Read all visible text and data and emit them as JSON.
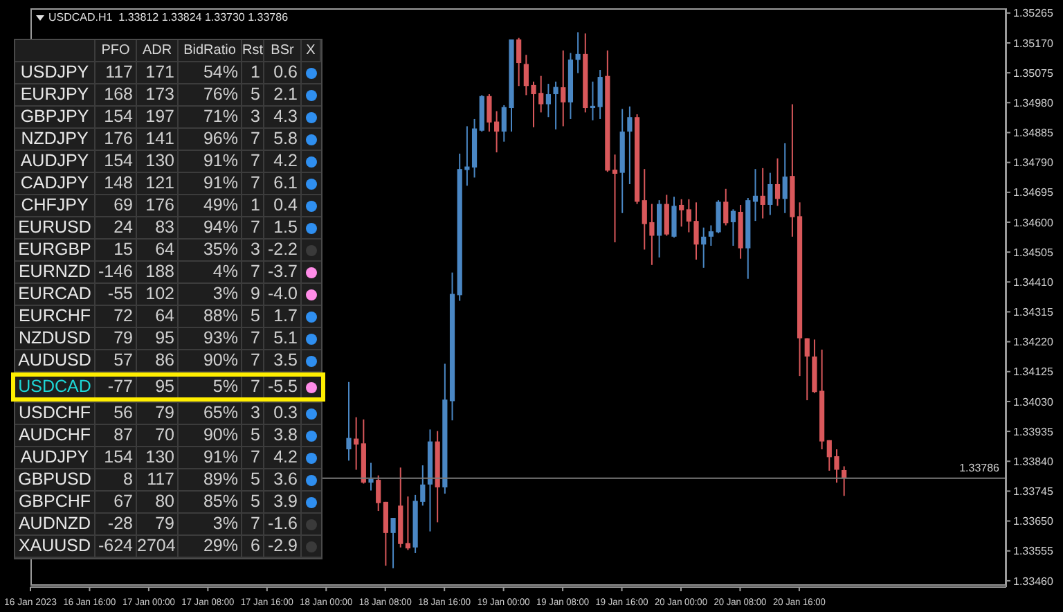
{
  "chart_data": [
    {
      "type": "candlestick",
      "title": "USDCAD.H1  1.33812 1.33824 1.33730 1.33786",
      "x": [
        "2023-01-18T03:00",
        "2023-01-18T04:00",
        "2023-01-18T05:00",
        "2023-01-18T06:00",
        "2023-01-18T07:00",
        "2023-01-18T08:00",
        "2023-01-18T09:00",
        "2023-01-18T10:00",
        "2023-01-18T11:00",
        "2023-01-18T12:00",
        "2023-01-18T13:00",
        "2023-01-18T14:00",
        "2023-01-18T15:00",
        "2023-01-18T16:00",
        "2023-01-18T17:00",
        "2023-01-18T18:00",
        "2023-01-18T19:00",
        "2023-01-18T20:00",
        "2023-01-18T21:00",
        "2023-01-18T22:00",
        "2023-01-18T23:00",
        "2023-01-19T00:00",
        "2023-01-19T01:00",
        "2023-01-19T02:00",
        "2023-01-19T03:00",
        "2023-01-19T04:00",
        "2023-01-19T05:00",
        "2023-01-19T06:00",
        "2023-01-19T07:00",
        "2023-01-19T08:00",
        "2023-01-19T09:00",
        "2023-01-19T10:00",
        "2023-01-19T11:00",
        "2023-01-19T12:00",
        "2023-01-19T13:00",
        "2023-01-19T14:00",
        "2023-01-19T15:00",
        "2023-01-19T16:00",
        "2023-01-19T17:00",
        "2023-01-19T18:00",
        "2023-01-19T19:00",
        "2023-01-19T20:00",
        "2023-01-19T21:00",
        "2023-01-19T22:00",
        "2023-01-19T23:00",
        "2023-01-20T00:00",
        "2023-01-20T01:00",
        "2023-01-20T02:00",
        "2023-01-20T03:00",
        "2023-01-20T04:00",
        "2023-01-20T05:00",
        "2023-01-20T06:00",
        "2023-01-20T07:00",
        "2023-01-20T08:00",
        "2023-01-20T09:00",
        "2023-01-20T10:00",
        "2023-01-20T11:00",
        "2023-01-20T12:00",
        "2023-01-20T13:00",
        "2023-01-20T14:00",
        "2023-01-20T15:00",
        "2023-01-20T16:00",
        "2023-01-20T17:00",
        "2023-01-20T18:00",
        "2023-01-20T19:00",
        "2023-01-20T20:00",
        "2023-01-20T21:00",
        "2023-01-20T22:00"
      ],
      "ohlc": [
        [
          1.33878,
          1.34092,
          1.33842,
          1.33914
        ],
        [
          1.33912,
          1.3398,
          1.33813,
          1.33893
        ],
        [
          1.33897,
          1.33973,
          1.33769,
          1.33772
        ],
        [
          1.33772,
          1.33835,
          1.33747,
          1.33784
        ],
        [
          1.33781,
          1.33795,
          1.33682,
          1.33707
        ],
        [
          1.33711,
          1.33711,
          1.33508,
          1.33612
        ],
        [
          1.33612,
          1.3366,
          1.335,
          1.3366
        ],
        [
          1.33699,
          1.3382,
          1.33566,
          1.33577
        ],
        [
          1.3358,
          1.33728,
          1.33558,
          1.33563
        ],
        [
          1.33566,
          1.33733,
          1.33548,
          1.33714
        ],
        [
          1.33711,
          1.33827,
          1.33699,
          1.33766
        ],
        [
          1.33766,
          1.33941,
          1.33617,
          1.33903
        ],
        [
          1.33903,
          1.33936,
          1.33646,
          1.33757
        ],
        [
          1.33757,
          1.3415,
          1.33737,
          1.34036
        ],
        [
          1.34031,
          1.3444,
          1.3397,
          1.34372
        ],
        [
          1.34368,
          1.34818,
          1.3435,
          1.34769
        ],
        [
          1.34766,
          1.34905,
          1.34716,
          1.34777
        ],
        [
          1.34774,
          1.34928,
          1.34742,
          1.34898
        ],
        [
          1.34891,
          1.35004,
          1.34888,
          1.35001
        ],
        [
          1.35001,
          1.35007,
          1.34888,
          1.34917
        ],
        [
          1.3492,
          1.34953,
          1.34822,
          1.34888
        ],
        [
          1.34888,
          1.34972,
          1.34856,
          1.34966
        ],
        [
          1.34963,
          1.35181,
          1.34888,
          1.35181
        ],
        [
          1.35181,
          1.35186,
          1.35033,
          1.35106
        ],
        [
          1.35103,
          1.35132,
          1.35004,
          1.35033
        ],
        [
          1.35036,
          1.35047,
          1.34902,
          1.35007
        ],
        [
          1.35011,
          1.35065,
          1.34949,
          1.34975
        ],
        [
          1.34975,
          1.3504,
          1.34934,
          1.35007
        ],
        [
          1.35007,
          1.35047,
          1.34895,
          1.3503
        ],
        [
          1.35029,
          1.35146,
          1.34905,
          1.34981
        ],
        [
          1.34981,
          1.35138,
          1.34928,
          1.35117
        ],
        [
          1.35116,
          1.35204,
          1.35074,
          1.35135
        ],
        [
          1.35135,
          1.352,
          1.34949,
          1.34963
        ],
        [
          1.34963,
          1.35047,
          1.34924,
          1.3497
        ],
        [
          1.34966,
          1.35084,
          1.34928,
          1.35062
        ],
        [
          1.35065,
          1.35146,
          1.3476,
          1.34764
        ],
        [
          1.34767,
          1.34815,
          1.34536,
          1.34754
        ],
        [
          1.34757,
          1.3496,
          1.34629,
          1.34888
        ],
        [
          1.34888,
          1.34968,
          1.34721,
          1.34934
        ],
        [
          1.34934,
          1.34943,
          1.34658,
          1.34665
        ],
        [
          1.3467,
          1.34769,
          1.34513,
          1.34594
        ],
        [
          1.346,
          1.34658,
          1.34464,
          1.34557
        ],
        [
          1.34557,
          1.3467,
          1.34488,
          1.34658
        ],
        [
          1.34658,
          1.34687,
          1.34557,
          1.34561
        ],
        [
          1.34554,
          1.34681,
          1.34551,
          1.34652
        ],
        [
          1.34655,
          1.34673,
          1.34586,
          1.34638
        ],
        [
          1.34641,
          1.34673,
          1.34568,
          1.34602
        ],
        [
          1.34604,
          1.34663,
          1.34481,
          1.34529
        ],
        [
          1.34529,
          1.34583,
          1.34455,
          1.34554
        ],
        [
          1.34554,
          1.3459,
          1.34525,
          1.34571
        ],
        [
          1.34568,
          1.3467,
          1.34565,
          1.34665
        ],
        [
          1.34665,
          1.34706,
          1.3459,
          1.34597
        ],
        [
          1.346,
          1.34641,
          1.34525,
          1.34636
        ],
        [
          1.34633,
          1.34655,
          1.34484,
          1.34517
        ],
        [
          1.34517,
          1.34677,
          1.3442,
          1.3467
        ],
        [
          1.34665,
          1.34769,
          1.34604,
          1.34684
        ],
        [
          1.34684,
          1.34772,
          1.34612,
          1.34655
        ],
        [
          1.34655,
          1.34757,
          1.34623,
          1.34721
        ],
        [
          1.34721,
          1.34803,
          1.34652,
          1.34674
        ],
        [
          1.34674,
          1.34851,
          1.34629,
          1.34745
        ],
        [
          1.34747,
          1.34975,
          1.34554,
          1.34616
        ],
        [
          1.34619,
          1.34663,
          1.34111,
          1.34231
        ],
        [
          1.34231,
          1.34231,
          1.34034,
          1.34173
        ],
        [
          1.34173,
          1.34227,
          1.34057,
          1.3406
        ],
        [
          1.34064,
          1.34195,
          1.33878,
          1.33903
        ],
        [
          1.33907,
          1.33907,
          1.3381,
          1.33853
        ],
        [
          1.33856,
          1.33878,
          1.33772,
          1.33813
        ],
        [
          1.33812,
          1.33824,
          1.3373,
          1.33786
        ]
      ],
      "colors": [
        "#4a87c4",
        "#d9585b",
        "#d9585b",
        "#4a87c4",
        "#d9585b",
        "#d9585b",
        "#4a87c4",
        "#d9585b",
        "#d9585b",
        "#4a87c4",
        "#4a87c4",
        "#4a87c4",
        "#d9585b",
        "#4a87c4",
        "#4a87c4",
        "#4a87c4",
        "#4a87c4",
        "#4a87c4",
        "#4a87c4",
        "#d9585b",
        "#d9585b",
        "#4a87c4",
        "#4a87c4",
        "#d9585b",
        "#d9585b",
        "#d9585b",
        "#d9585b",
        "#4a87c4",
        "#4a87c4",
        "#d9585b",
        "#4a87c4",
        "#4a87c4",
        "#d9585b",
        "#4a87c4",
        "#4a87c4",
        "#d9585b",
        "#d9585b",
        "#4a87c4",
        "#4a87c4",
        "#d9585b",
        "#d9585b",
        "#d9585b",
        "#4a87c4",
        "#d9585b",
        "#4a87c4",
        "#d9585b",
        "#d9585b",
        "#d9585b",
        "#4a87c4",
        "#4a87c4",
        "#4a87c4",
        "#d9585b",
        "#4a87c4",
        "#d9585b",
        "#4a87c4",
        "#4a87c4",
        "#d9585b",
        "#4a87c4",
        "#d9585b",
        "#4a87c4",
        "#d9585b",
        "#d9585b",
        "#d9585b",
        "#d9585b",
        "#d9585b",
        "#d9585b",
        "#d9585b",
        "#d9585b"
      ],
      "xlim": [
        "2023-01-16T08:00",
        "2023-01-21T20:00"
      ],
      "xticks": [
        {
          "value": "2023-01-16T08:00",
          "label": "16 Jan 2023"
        },
        {
          "value": "2023-01-16T16:00",
          "label": "16 Jan 16:00"
        },
        {
          "value": "2023-01-17T00:00",
          "label": "17 Jan 00:00"
        },
        {
          "value": "2023-01-17T08:00",
          "label": "17 Jan 08:00"
        },
        {
          "value": "2023-01-17T16:00",
          "label": "17 Jan 16:00"
        },
        {
          "value": "2023-01-18T00:00",
          "label": "18 Jan 00:00"
        },
        {
          "value": "2023-01-18T08:00",
          "label": "18 Jan 08:00"
        },
        {
          "value": "2023-01-18T16:00",
          "label": "18 Jan 16:00"
        },
        {
          "value": "2023-01-19T00:00",
          "label": "19 Jan 00:00"
        },
        {
          "value": "2023-01-19T08:00",
          "label": "19 Jan 08:00"
        },
        {
          "value": "2023-01-19T16:00",
          "label": "19 Jan 16:00"
        },
        {
          "value": "2023-01-20T00:00",
          "label": "20 Jan 00:00"
        },
        {
          "value": "2023-01-20T08:00",
          "label": "20 Jan 08:00"
        },
        {
          "value": "2023-01-20T16:00",
          "label": "20 Jan 16:00"
        }
      ],
      "ylim": [
        1.3344,
        1.3528
      ],
      "yticks": [
        1.35265,
        {
          "value": 1.3517,
          "label": "1.35170"
        },
        1.35075,
        {
          "value": 1.3498,
          "label": "1.34980"
        },
        1.34885,
        {
          "value": 1.3479,
          "label": "1.34790"
        },
        1.34695,
        {
          "value": 1.346,
          "label": "1.34600"
        },
        1.34505,
        {
          "value": 1.3441,
          "label": "1.34410"
        },
        1.34315,
        {
          "value": 1.3422,
          "label": "1.34220"
        },
        1.34125,
        {
          "value": 1.3403,
          "label": "1.34030"
        },
        1.33935,
        {
          "value": 1.3384,
          "label": "1.33840"
        },
        1.33745,
        {
          "value": 1.3365,
          "label": "1.33650"
        },
        1.33555,
        {
          "value": 1.3346,
          "label": "1.33460"
        }
      ],
      "ref_lines": [
        {
          "axis": "y",
          "value": 1.33786,
          "label": "1.33786",
          "color": "#7a7a7a"
        }
      ]
    },
    {
      "type": "other",
      "data_labels": true,
      "categories": [
        "USDJPY",
        "EURJPY",
        "GBPJPY",
        "NZDJPY",
        "AUDJPY",
        "CADJPY",
        "CHFJPY",
        "EURUSD",
        "EURGBP",
        "EURNZD",
        "EURCAD",
        "EURCHF",
        "NZDUSD",
        "AUDUSD",
        "USDCAD",
        "USDCHF",
        "AUDCHF",
        "AUDJPY",
        "GBPUSD",
        "GBPCHF",
        "AUDNZD",
        "XAUUSD"
      ],
      "series": [
        {
          "name": "PFO",
          "values": [
            117,
            168,
            154,
            176,
            154,
            148,
            69,
            24,
            15,
            -146,
            -55,
            72,
            79,
            57,
            -77,
            56,
            87,
            154,
            8,
            67,
            -28,
            -624
          ]
        },
        {
          "name": "ADR",
          "values": [
            171,
            173,
            197,
            141,
            130,
            121,
            176,
            83,
            64,
            188,
            102,
            64,
            95,
            86,
            95,
            79,
            70,
            130,
            117,
            80,
            79,
            2704
          ]
        },
        {
          "name": "BidRatio",
          "values": [
            54,
            76,
            71,
            96,
            91,
            91,
            49,
            94,
            35,
            4,
            3,
            88,
            93,
            90,
            5,
            65,
            90,
            91,
            89,
            85,
            3,
            29
          ],
          "value_labels": [
            "54%",
            "76%",
            "71%",
            "96%",
            "91%",
            "91%",
            "49%",
            "94%",
            "35%",
            "4%",
            "3%",
            "88%",
            "93%",
            "90%",
            "5%",
            "65%",
            "90%",
            "91%",
            "89%",
            "85%",
            "3%",
            "29%"
          ]
        },
        {
          "name": "Rst",
          "values": [
            1,
            5,
            3,
            7,
            7,
            7,
            1,
            7,
            3,
            7,
            9,
            5,
            7,
            7,
            7,
            3,
            5,
            7,
            5,
            5,
            7,
            6
          ]
        },
        {
          "name": "BSr",
          "values": [
            0.6,
            2.1,
            4.3,
            5.8,
            4.2,
            6.1,
            0.4,
            1.5,
            -2.2,
            -3.7,
            -4,
            1.7,
            5.1,
            3.5,
            -5.5,
            0.3,
            3.8,
            4.2,
            3.6,
            3.9,
            -1.6,
            -2.9
          ],
          "value_labels": [
            "0.6",
            "2.1",
            "4.3",
            "5.8",
            "4.2",
            "6.1",
            "0.4",
            "1.5",
            "-2.2",
            "-3.7",
            "-4.0",
            "1.7",
            "5.1",
            "3.5",
            "-5.5",
            "0.3",
            "3.8",
            "4.2",
            "3.6",
            "3.9",
            "-1.6",
            "-2.9"
          ]
        },
        {
          "name": "X",
          "values": [
            null,
            null,
            null,
            null,
            null,
            null,
            null,
            null,
            null,
            null,
            null,
            null,
            null,
            null,
            null,
            null,
            null,
            null,
            null,
            null,
            null,
            null
          ],
          "colors": [
            "#2f8ff0",
            "#2f8ff0",
            "#2f8ff0",
            "#2f8ff0",
            "#2f8ff0",
            "#2f8ff0",
            "#2f8ff0",
            "#2f8ff0",
            "#3a3a3a",
            "#ff8ce8",
            "#ff8ce8",
            "#2f8ff0",
            "#2f8ff0",
            "#2f8ff0",
            "#ff8ce8",
            "#2f8ff0",
            "#2f8ff0",
            "#2f8ff0",
            "#2f8ff0",
            "#2f8ff0",
            "#3a3a3a",
            "#3a3a3a"
          ]
        }
      ]
    }
  ]
}
